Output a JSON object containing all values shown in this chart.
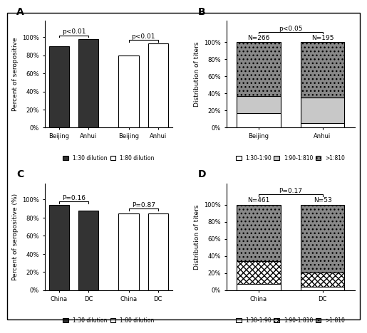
{
  "panel_A": {
    "title": "A",
    "ylabel": "Percent of seropositive",
    "dark_values": [
      0.9,
      0.98
    ],
    "light_values": [
      0.8,
      0.93
    ],
    "group_labels_dark": [
      "Beijing",
      "Anhui"
    ],
    "group_labels_light": [
      "Beijing",
      "Anhui"
    ],
    "pval_dark": "p<0.01",
    "pval_light": "p<0.01",
    "legend_dark": "1:30 dilution",
    "legend_light": "1:80 dilution"
  },
  "panel_B": {
    "title": "B",
    "ylabel": "Distribution of titers",
    "categories": [
      "Beijing",
      "Anhui"
    ],
    "N_labels": [
      "N=266",
      "N=195"
    ],
    "low": [
      0.17,
      0.05
    ],
    "medium": [
      0.2,
      0.3
    ],
    "high": [
      0.63,
      0.65
    ],
    "pval": "p<0.05",
    "legend_low": "1:30-1:90",
    "legend_med": "1:90-1:810",
    "legend_high": ">1:810"
  },
  "panel_C": {
    "title": "C",
    "ylabel": "Percent of seropositive (%)",
    "dark_values": [
      0.94,
      0.88
    ],
    "light_values": [
      0.85,
      0.845
    ],
    "group_labels_dark": [
      "China",
      "DC"
    ],
    "group_labels_light": [
      "China",
      "DC"
    ],
    "pval_dark": "P=0.16",
    "pval_light": "P=0.87",
    "legend_dark": "1:30 dilution",
    "legend_light": "1:80 dilution"
  },
  "panel_D": {
    "title": "D",
    "ylabel": "Distribution of titers",
    "categories": [
      "China",
      "DC"
    ],
    "N_labels": [
      "N=461",
      "N=53"
    ],
    "low_china": 0.07,
    "low_dc": 0.04,
    "medium_china": 0.27,
    "medium_dc": 0.17,
    "high_china": 0.66,
    "high_dc": 0.79,
    "pval": "P=0.17",
    "legend_low": "1:30-1:90",
    "legend_med": "1:90-1:810",
    "legend_high": ">1:810"
  },
  "dark_color": "#333333",
  "light_color": "#ffffff",
  "bg_color": "#ffffff",
  "bar_edge": "#000000"
}
